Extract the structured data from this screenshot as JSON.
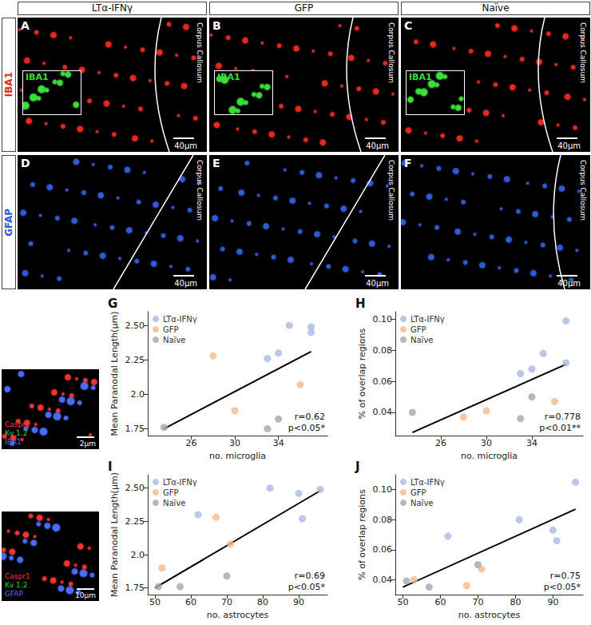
{
  "figure": {
    "column_titles": [
      "LTα-IFNγ",
      "GFP",
      "Naïve"
    ],
    "rows": [
      {
        "label": "IBA1",
        "color": "#e8281e",
        "panels": [
          "A",
          "B",
          "C"
        ],
        "inset": {
          "label": "IBA1",
          "color": "#3adc3a"
        }
      },
      {
        "label": "GFAP",
        "color": "#2f5bd8",
        "panels": [
          "D",
          "E",
          "F"
        ]
      }
    ],
    "region_label": "Corpus Callosum",
    "scale_bar": "40μm",
    "side_images": [
      {
        "labels": [
          {
            "text": "Caspr1",
            "color": "#ff3030"
          },
          {
            "text": "Kv 1.2",
            "color": "#30d030"
          },
          {
            "text": "IBA1",
            "color": "#4a6cff"
          }
        ],
        "scale_bar": "2μm"
      },
      {
        "labels": [
          {
            "text": "Caspr1",
            "color": "#ff3030"
          },
          {
            "text": "Kv 1.2",
            "color": "#30d030"
          },
          {
            "text": "GFAP",
            "color": "#4a6cff"
          }
        ],
        "scale_bar": "10μm"
      }
    ]
  },
  "chart_data": [
    {
      "type": "scatter",
      "title": "G",
      "x_label": "no. microglia",
      "y_label": "Mean Paranodal Length(μm)",
      "xlim": [
        22,
        38.5
      ],
      "xticks": [
        26,
        30,
        34
      ],
      "ylim": [
        1.7,
        2.6
      ],
      "yticks": [
        1.75,
        {
          "value": 2,
          "label": "2.0"
        },
        2.25,
        {
          "value": 2.5,
          "label": "2.50"
        }
      ],
      "grid": false,
      "legend": "upper left",
      "series": [
        {
          "name": "LTα-IFNγ",
          "color": "#a9b9e0",
          "marker": "circle",
          "x": [
            33,
            34,
            35,
            37,
            37
          ],
          "values": [
            2.26,
            2.3,
            2.5,
            2.49,
            2.45
          ]
        },
        {
          "name": "GFP",
          "color": "#f5b98a",
          "marker": "circle",
          "x": [
            28,
            30,
            36
          ],
          "values": [
            2.28,
            1.88,
            2.07
          ]
        },
        {
          "name": "Naïve",
          "color": "#a6a6a6",
          "marker": "circle",
          "x": [
            23.5,
            33,
            34
          ],
          "values": [
            1.76,
            1.75,
            1.82
          ]
        }
      ],
      "trend_line": {
        "x": [
          23.5,
          37
        ],
        "values": [
          1.75,
          2.31
        ],
        "color": "#000000",
        "line_style": "solid"
      },
      "annotations": [
        "r=0.62",
        "p<0.05*"
      ]
    },
    {
      "type": "scatter",
      "title": "H",
      "x_label": "no. microglia",
      "y_label": "% of overlap regions",
      "xlim": [
        22,
        38.5
      ],
      "xticks": [
        26,
        30,
        34
      ],
      "ylim": [
        0.025,
        0.105
      ],
      "yticks": [
        0.04,
        0.06,
        0.08,
        {
          "value": 0.1,
          "label": "0.10"
        }
      ],
      "grid": false,
      "legend": "upper left",
      "series": [
        {
          "name": "LTα-IFNγ",
          "color": "#a9b9e0",
          "marker": "circle",
          "x": [
            33,
            34,
            35,
            37,
            37
          ],
          "values": [
            0.065,
            0.068,
            0.078,
            0.099,
            0.072
          ]
        },
        {
          "name": "GFP",
          "color": "#f5b98a",
          "marker": "circle",
          "x": [
            28,
            30,
            36
          ],
          "values": [
            0.037,
            0.041,
            0.047
          ]
        },
        {
          "name": "Naïve",
          "color": "#a6a6a6",
          "marker": "circle",
          "x": [
            23.5,
            33,
            34
          ],
          "values": [
            0.04,
            0.036,
            0.05
          ]
        }
      ],
      "trend_line": {
        "x": [
          23.5,
          37
        ],
        "values": [
          0.027,
          0.071
        ],
        "color": "#000000",
        "line_style": "solid"
      },
      "annotations": [
        "r=0.778",
        "p<0.01**"
      ]
    },
    {
      "type": "scatter",
      "title": "I",
      "x_label": "no. astrocytes",
      "y_label": "Mean Paranodal Length(μm)",
      "xlim": [
        48,
        98
      ],
      "xticks": [
        50,
        60,
        70,
        80,
        90
      ],
      "ylim": [
        1.7,
        2.6
      ],
      "yticks": [
        1.75,
        {
          "value": 2,
          "label": "2.0"
        },
        2.25,
        {
          "value": 2.5,
          "label": "2.50"
        }
      ],
      "grid": false,
      "legend": "upper left",
      "series": [
        {
          "name": "LTα-IFNγ",
          "color": "#a9b9e0",
          "marker": "circle",
          "x": [
            62,
            82,
            90,
            91,
            96
          ],
          "values": [
            2.3,
            2.5,
            2.46,
            2.27,
            2.49
          ]
        },
        {
          "name": "GFP",
          "color": "#f5b98a",
          "marker": "circle",
          "x": [
            52,
            67,
            71
          ],
          "values": [
            1.9,
            2.28,
            2.08
          ]
        },
        {
          "name": "Naïve",
          "color": "#a6a6a6",
          "marker": "circle",
          "x": [
            51,
            57,
            70
          ],
          "values": [
            1.76,
            1.76,
            1.84
          ]
        }
      ],
      "trend_line": {
        "x": [
          50,
          96
        ],
        "values": [
          1.75,
          2.48
        ],
        "color": "#000000",
        "line_style": "solid"
      },
      "annotations": [
        "r=0.69",
        "p<0.05*"
      ]
    },
    {
      "type": "scatter",
      "title": "J",
      "x_label": "no. astrocytes",
      "y_label": "% of overlap regions",
      "xlim": [
        48,
        98
      ],
      "xticks": [
        50,
        60,
        70,
        80,
        90
      ],
      "ylim": [
        0.03,
        0.11
      ],
      "yticks": [
        0.04,
        0.06,
        0.08,
        {
          "value": 0.1,
          "label": "0.10"
        }
      ],
      "grid": false,
      "legend": "upper left",
      "series": [
        {
          "name": "LTα-IFNγ",
          "color": "#a9b9e0",
          "marker": "circle",
          "x": [
            62,
            81,
            90,
            91,
            96
          ],
          "values": [
            0.069,
            0.08,
            0.073,
            0.066,
            0.105
          ]
        },
        {
          "name": "GFP",
          "color": "#f5b98a",
          "marker": "circle",
          "x": [
            53,
            67,
            71
          ],
          "values": [
            0.04,
            0.036,
            0.047
          ]
        },
        {
          "name": "Naïve",
          "color": "#a6a6a6",
          "marker": "circle",
          "x": [
            51,
            57,
            70
          ],
          "values": [
            0.039,
            0.035,
            0.05
          ]
        }
      ],
      "trend_line": {
        "x": [
          50,
          96
        ],
        "values": [
          0.035,
          0.087
        ],
        "color": "#000000",
        "line_style": "solid"
      },
      "annotations": [
        "r=0.75",
        "p<0.05*"
      ]
    }
  ]
}
